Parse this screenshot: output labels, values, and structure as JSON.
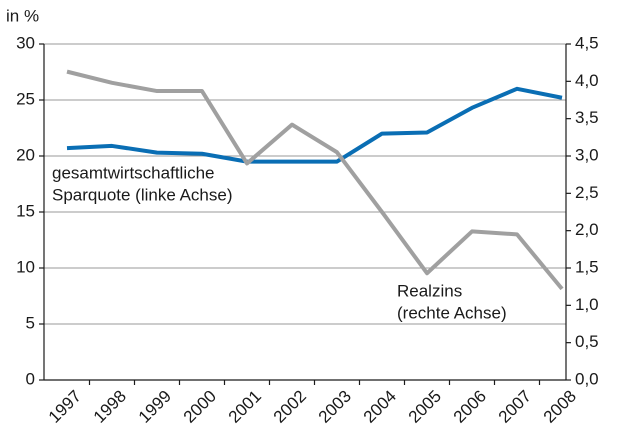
{
  "chart_data": {
    "type": "line",
    "y_unit_label": "in %",
    "categories": [
      "1997",
      "1998",
      "1999",
      "2000",
      "2001",
      "2002",
      "2003",
      "2004",
      "2005",
      "2006",
      "2007",
      "2008"
    ],
    "series": [
      {
        "label_lines": [
          "gesamtwirtschaftliche",
          "Sparquote (linke Achse)"
        ],
        "color": "#0a6eb4",
        "axis": "y",
        "values": [
          20.7,
          20.9,
          20.3,
          20.2,
          19.5,
          19.5,
          19.5,
          22.0,
          22.1,
          24.3,
          26.0,
          25.2
        ]
      },
      {
        "label_lines": [
          "Realzins",
          "(rechte Achse)"
        ],
        "color": "#a0a0a0",
        "axis": "y2",
        "values": [
          4.13,
          3.98,
          3.87,
          3.87,
          2.9,
          3.42,
          3.05,
          2.25,
          1.43,
          1.99,
          1.95,
          1.22
        ]
      }
    ],
    "ylim": [
      0,
      30
    ],
    "yticks": [
      0,
      5,
      10,
      15,
      20,
      25,
      30
    ],
    "y2lim": [
      0,
      4.5
    ],
    "y2ticks": [
      {
        "value": 0,
        "label": "0,0"
      },
      {
        "value": 0.5,
        "label": "0,5"
      },
      {
        "value": 1,
        "label": "1,0"
      },
      {
        "value": 1.5,
        "label": "1,5"
      },
      {
        "value": 2,
        "label": "2,0"
      },
      {
        "value": 2.5,
        "label": "2,5"
      },
      {
        "value": 3,
        "label": "3,0"
      },
      {
        "value": 3.5,
        "label": "3,5"
      },
      {
        "value": 4,
        "label": "4,0"
      },
      {
        "value": 4.5,
        "label": "4,5"
      }
    ],
    "grid": true
  }
}
